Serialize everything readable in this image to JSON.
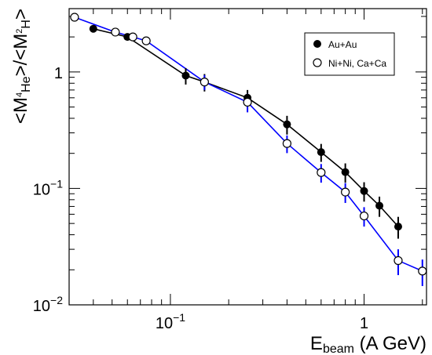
{
  "chart_data": {
    "type": "scatter",
    "title": "",
    "xlabel": {
      "main": "E",
      "sub": "beam",
      "rest": " (A GeV)"
    },
    "ylabel": {
      "p1": "<M",
      "s1": "4",
      "s1b": "He",
      "p2": ">/<M",
      "s2": "2",
      "s2b": "H",
      "p3": ">"
    },
    "xscale": "log",
    "yscale": "log",
    "xlim": [
      0.03,
      2.1
    ],
    "ylim": [
      0.01,
      3.5
    ],
    "grid": false,
    "legend_position": "top-right",
    "xticks": [
      {
        "label_base": "10",
        "label_exp": "−1",
        "value": 0.1
      },
      {
        "label_base": "1",
        "label_exp": "",
        "value": 1
      }
    ],
    "yticks": [
      {
        "label_base": "1",
        "label_exp": "",
        "value": 1
      },
      {
        "label_base": "10",
        "label_exp": "−1",
        "value": 0.1
      },
      {
        "label_base": "10",
        "label_exp": "−2",
        "value": 0.01
      }
    ],
    "series": [
      {
        "name": "Au+Au",
        "marker": "filled-circle",
        "line_color": "#000000",
        "marker_color": "#000000",
        "points": [
          {
            "x": 0.04,
            "y": 2.35,
            "err": 0
          },
          {
            "x": 0.06,
            "y": 2.0,
            "err": 0
          },
          {
            "x": 0.12,
            "y": 0.93,
            "err": 0.15
          },
          {
            "x": 0.15,
            "y": 0.82,
            "err": 0.14
          },
          {
            "x": 0.25,
            "y": 0.6,
            "err": 0.1
          },
          {
            "x": 0.4,
            "y": 0.355,
            "err": 0.065
          },
          {
            "x": 0.6,
            "y": 0.205,
            "err": 0.036
          },
          {
            "x": 0.8,
            "y": 0.138,
            "err": 0.026
          },
          {
            "x": 1.0,
            "y": 0.095,
            "err": 0.018
          },
          {
            "x": 1.2,
            "y": 0.071,
            "err": 0.014
          },
          {
            "x": 1.5,
            "y": 0.047,
            "err": 0.01
          }
        ]
      },
      {
        "name": "Ni+Ni, Ca+Ca",
        "marker": "open-circle",
        "line_color": "#0000ff",
        "marker_color": "#000000",
        "points": [
          {
            "x": 0.032,
            "y": 2.95,
            "err": 0
          },
          {
            "x": 0.052,
            "y": 2.2,
            "err": 0
          },
          {
            "x": 0.064,
            "y": 2.0,
            "err": 0
          },
          {
            "x": 0.075,
            "y": 1.85,
            "err": 0
          },
          {
            "x": 0.15,
            "y": 0.82,
            "err": 0.12
          },
          {
            "x": 0.25,
            "y": 0.55,
            "err": 0.1
          },
          {
            "x": 0.4,
            "y": 0.243,
            "err": 0.042
          },
          {
            "x": 0.6,
            "y": 0.137,
            "err": 0.025
          },
          {
            "x": 0.8,
            "y": 0.093,
            "err": 0.018
          },
          {
            "x": 1.0,
            "y": 0.058,
            "err": 0.011
          },
          {
            "x": 1.5,
            "y": 0.024,
            "err": 0.006
          },
          {
            "x": 2.0,
            "y": 0.0195,
            "err": 0.005
          }
        ]
      }
    ]
  }
}
